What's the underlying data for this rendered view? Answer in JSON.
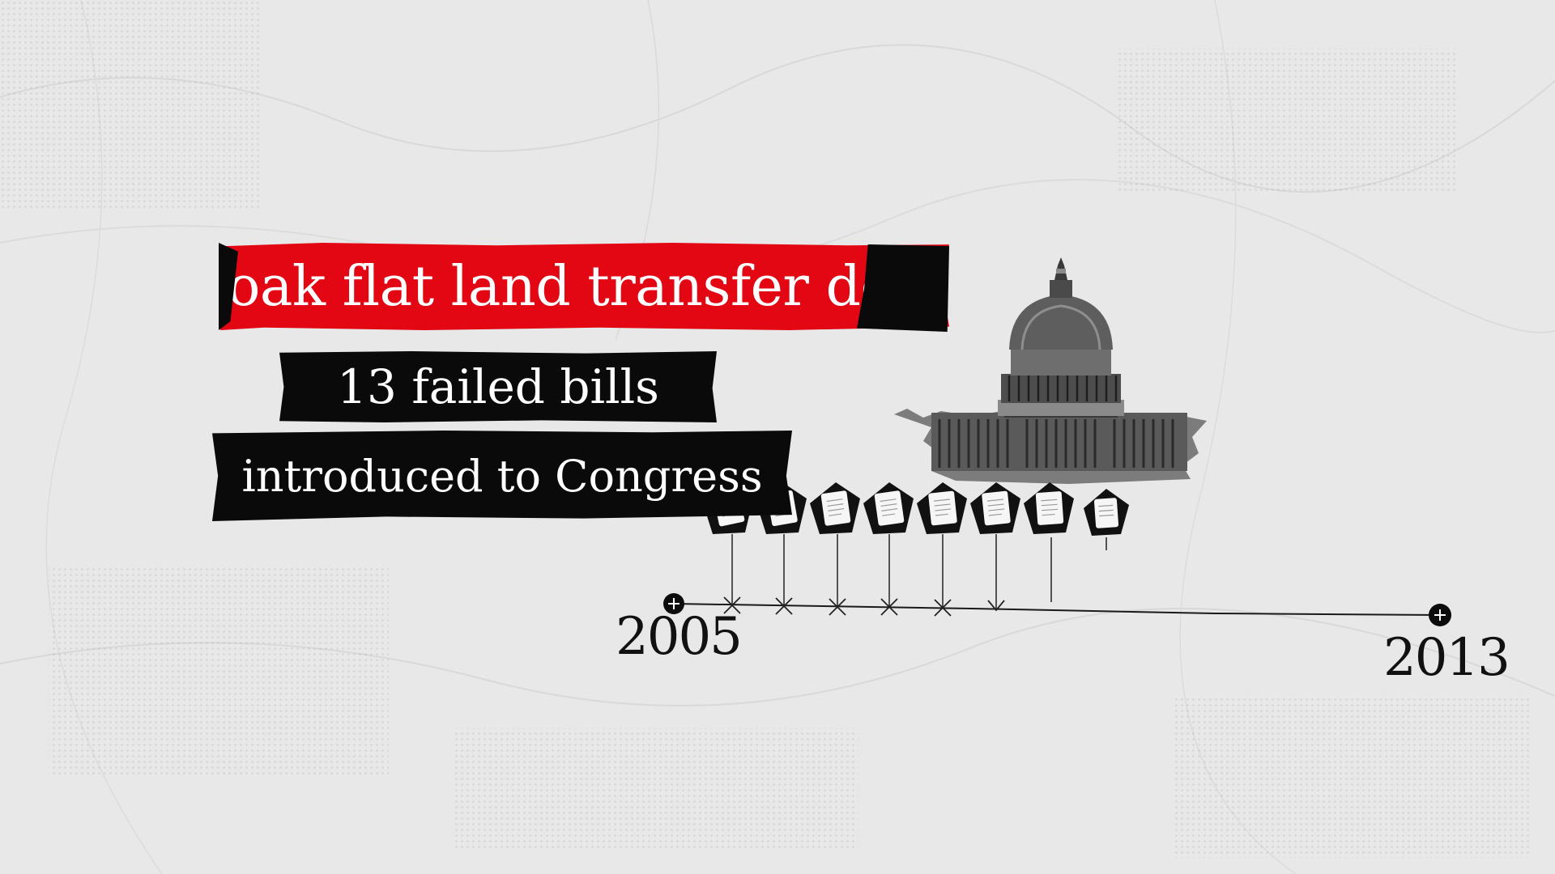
{
  "headline": {
    "title": "oak flat land transfer deal",
    "bills": "13 failed bills",
    "subtitle": "introduced to Congress"
  },
  "timeline": {
    "start_year": "2005",
    "end_year": "2013"
  },
  "images": {
    "building": "us-capitol-building",
    "documents": "bill-document-icon"
  },
  "colors": {
    "background": "#e8e8e9",
    "accent_red": "#e30613",
    "label_black": "#0a0a0a",
    "ink": "#111111"
  }
}
